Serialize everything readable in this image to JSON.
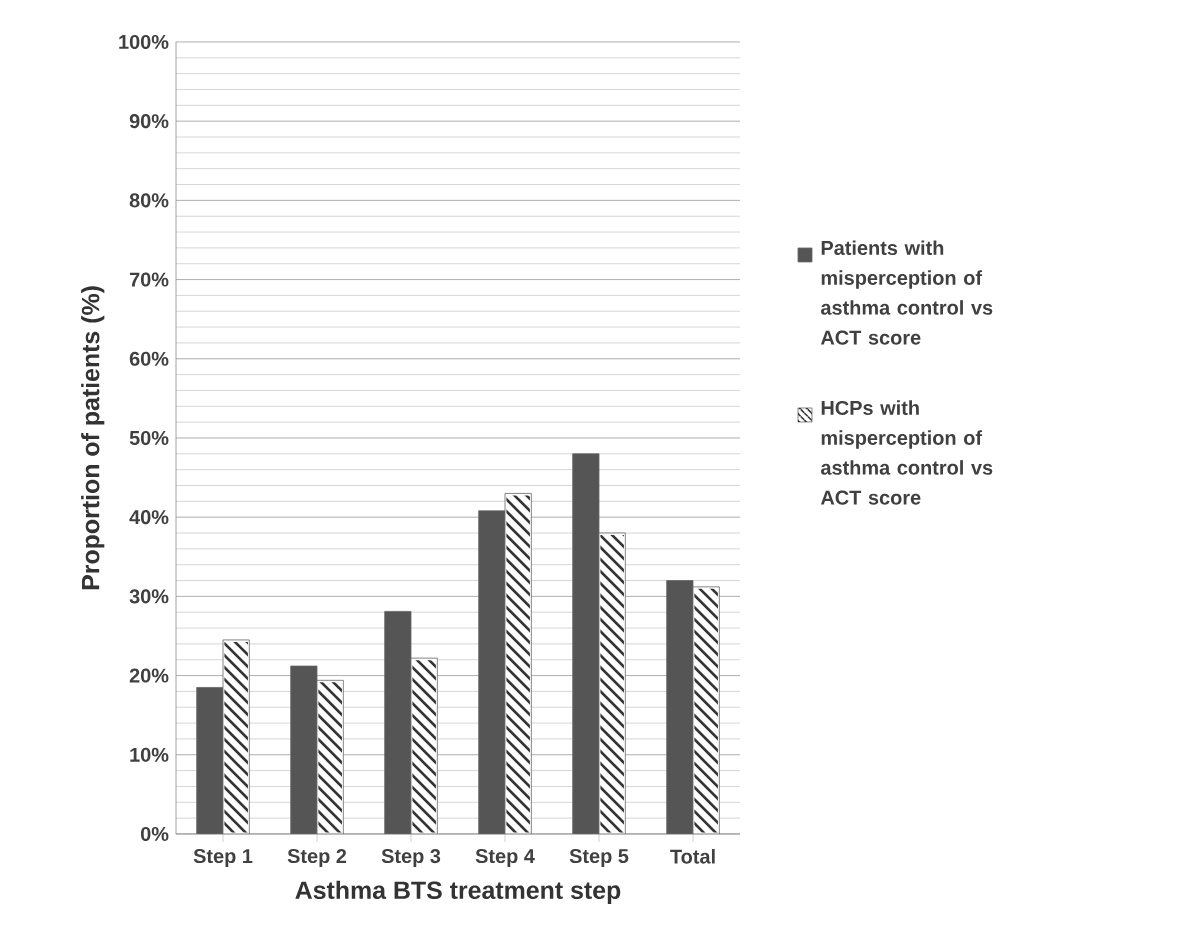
{
  "chart_data": {
    "type": "bar",
    "xlabel": "Asthma BTS treatment step",
    "ylabel": "Proportion of patients (%)",
    "categories": [
      "Step 1",
      "Step 2",
      "Step 3",
      "Step 4",
      "Step 5",
      "Total"
    ],
    "series": [
      {
        "name": "Patients with misperception of asthma control vs ACT score",
        "color": "#555555",
        "values": [
          18.5,
          21.2,
          28.1,
          40.8,
          48,
          32
        ]
      },
      {
        "name": "HCPs with misperception of asthma control vs ACT score",
        "color": "#ffffff",
        "values": [
          24.5,
          19.4,
          22.2,
          43,
          38,
          31.2
        ]
      }
    ],
    "ylim": [
      0,
      100
    ],
    "yticks": [
      {
        "value": 0,
        "label": "0%"
      },
      {
        "value": 10,
        "label": "10%"
      },
      {
        "value": 20,
        "label": "20%"
      },
      {
        "value": 30,
        "label": "30%"
      },
      {
        "value": 40,
        "label": "40%"
      },
      {
        "value": 50,
        "label": "50%"
      },
      {
        "value": 60,
        "label": "60%"
      },
      {
        "value": 70,
        "label": "70%"
      },
      {
        "value": 80,
        "label": "80%"
      },
      {
        "value": 90,
        "label": "90%"
      },
      {
        "value": 100,
        "label": "100%"
      }
    ],
    "grid": "y",
    "legend": "right"
  }
}
